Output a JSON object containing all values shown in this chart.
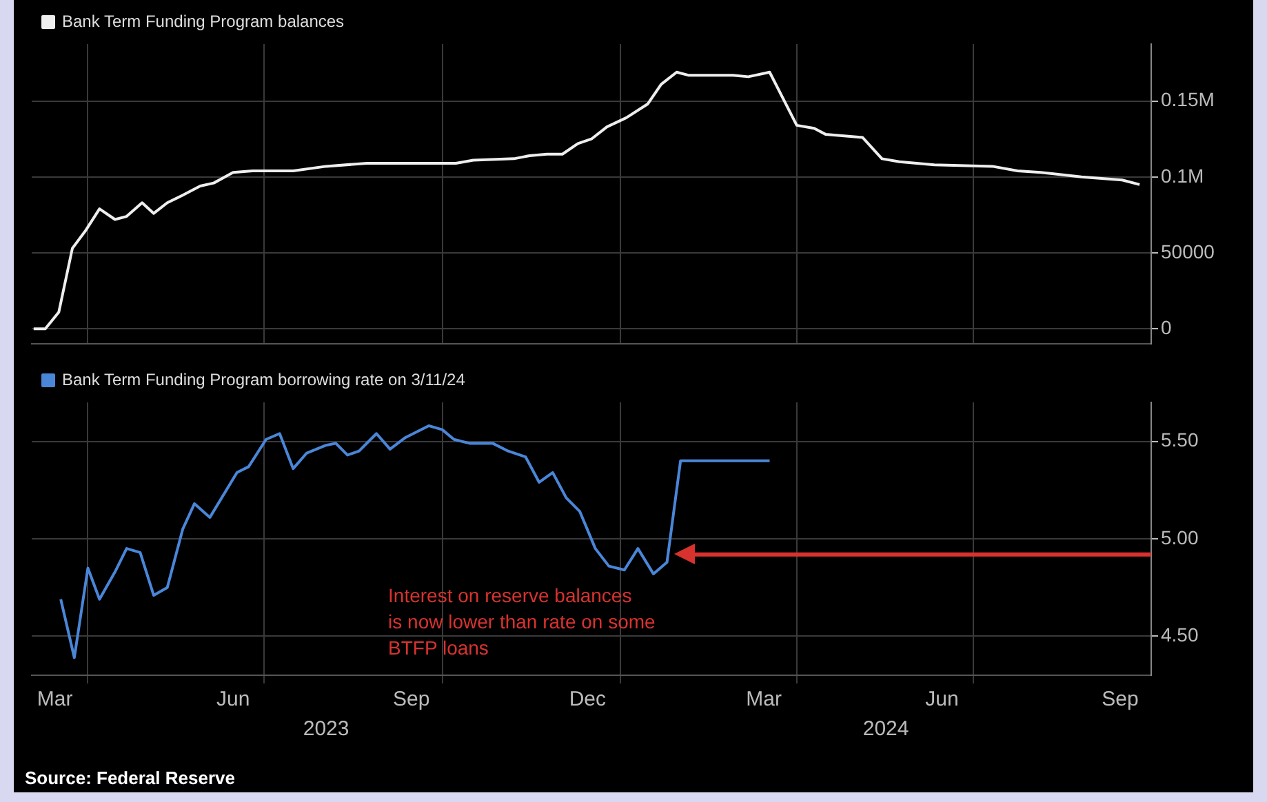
{
  "chart_data": [
    {
      "type": "line",
      "legend": "top left",
      "grid": true,
      "tick_labels": "y",
      "xlim": [
        "2023-03-03",
        "2024-10-01"
      ],
      "ylim": [
        -10000,
        187500
      ],
      "xticks": [
        {
          "value": "2023-04-01",
          "label": null
        },
        {
          "value": "2023-07-01",
          "label": null
        },
        {
          "value": "2023-10-01",
          "label": null
        },
        {
          "value": "2024-01-01",
          "label": null
        },
        {
          "value": "2024-04-01",
          "label": null
        },
        {
          "value": "2024-07-01",
          "label": null
        }
      ],
      "yticks": [
        0,
        50000,
        {
          "value": 100000,
          "label": "0.1M"
        },
        {
          "value": 150000,
          "label": "0.15M"
        }
      ],
      "series": [
        {
          "name": "Bank Term Funding Program balances",
          "color": "#eeeeee",
          "x": [
            "2023-03-04",
            "2023-03-10",
            "2023-03-17",
            "2023-03-24",
            "2023-03-31",
            "2023-04-07",
            "2023-04-15",
            "2023-04-21",
            "2023-04-29",
            "2023-05-05",
            "2023-05-12",
            "2023-05-20",
            "2023-05-29",
            "2023-06-05",
            "2023-06-15",
            "2023-06-25",
            "2023-07-16",
            "2023-08-02",
            "2023-08-23",
            "2023-09-17",
            "2023-10-08",
            "2023-10-17",
            "2023-11-07",
            "2023-11-15",
            "2023-11-24",
            "2023-12-02",
            "2023-12-10",
            "2023-12-17",
            "2023-12-25",
            "2024-01-04",
            "2024-01-15",
            "2024-01-22",
            "2024-01-30",
            "2024-02-05",
            "2024-02-28",
            "2024-03-07",
            "2024-03-18",
            "2024-04-01",
            "2024-04-10",
            "2024-04-16",
            "2024-05-05",
            "2024-05-15",
            "2024-05-24",
            "2024-06-11",
            "2024-07-11",
            "2024-07-24",
            "2024-08-05",
            "2024-08-26",
            "2024-09-16",
            "2024-09-25"
          ],
          "values": [
            0,
            0,
            11000,
            53000,
            65000,
            79000,
            72000,
            74000,
            83000,
            76000,
            83000,
            88000,
            94000,
            96000,
            103000,
            104000,
            104000,
            107000,
            109000,
            109000,
            109000,
            111000,
            112000,
            114000,
            115000,
            115000,
            122000,
            125000,
            133000,
            139000,
            148000,
            161000,
            169000,
            167000,
            167000,
            166000,
            169000,
            134000,
            132000,
            128000,
            126000,
            112000,
            110000,
            108000,
            107000,
            104000,
            103000,
            100000,
            98000,
            95000
          ]
        }
      ]
    },
    {
      "type": "line",
      "legend": "top left",
      "grid": true,
      "xlim": [
        "2023-03-03",
        "2024-10-01"
      ],
      "ylim": [
        4.3,
        5.7
      ],
      "xticks": [
        {
          "value": "2023-03-15",
          "label": "Mar"
        },
        {
          "value": "2023-04-01",
          "label": null
        },
        {
          "value": "2023-06-15",
          "label": "Jun"
        },
        {
          "value": "2023-07-01",
          "label": null
        },
        {
          "value": "2023-09-15",
          "label": "Sep"
        },
        {
          "value": "2023-10-01",
          "label": null
        },
        {
          "value": "2023-12-15",
          "label": "Dec"
        },
        {
          "value": "2024-01-01",
          "label": null
        },
        {
          "value": "2024-03-15",
          "label": "Mar"
        },
        {
          "value": "2024-04-01",
          "label": null
        },
        {
          "value": "2024-06-15",
          "label": "Jun"
        },
        {
          "value": "2024-07-01",
          "label": null
        },
        {
          "value": "2024-09-15",
          "label": "Sep"
        }
      ],
      "yticks": [
        {
          "value": 4.5,
          "label": "4.50"
        },
        {
          "value": 5,
          "label": "5.00"
        },
        {
          "value": 5.5,
          "label": "5.50"
        }
      ],
      "series": [
        {
          "name": "Bank Term Funding Program borrowing rate on 3/11/24",
          "color": "#4a86d8",
          "x": [
            "2023-03-18",
            "2023-03-25",
            "2023-04-01",
            "2023-04-07",
            "2023-04-15",
            "2023-04-21",
            "2023-04-28",
            "2023-05-05",
            "2023-05-12",
            "2023-05-20",
            "2023-05-26",
            "2023-06-03",
            "2023-06-17",
            "2023-06-23",
            "2023-07-02",
            "2023-07-09",
            "2023-07-16",
            "2023-07-23",
            "2023-08-02",
            "2023-08-07",
            "2023-08-13",
            "2023-08-19",
            "2023-08-28",
            "2023-09-04",
            "2023-09-12",
            "2023-09-24",
            "2023-10-01",
            "2023-10-07",
            "2023-10-15",
            "2023-10-27",
            "2023-11-04",
            "2023-11-13",
            "2023-11-20",
            "2023-11-27",
            "2023-12-04",
            "2023-12-11",
            "2023-12-19",
            "2023-12-26",
            "2024-01-03",
            "2024-01-10",
            "2024-01-18",
            "2024-01-25",
            "2024-02-01",
            "2024-03-18"
          ],
          "values": [
            4.69,
            4.39,
            4.85,
            4.69,
            4.83,
            4.95,
            4.93,
            4.71,
            4.75,
            5.05,
            5.18,
            5.11,
            5.34,
            5.37,
            5.51,
            5.54,
            5.36,
            5.44,
            5.48,
            5.49,
            5.43,
            5.45,
            5.54,
            5.46,
            5.52,
            5.58,
            5.56,
            5.51,
            5.49,
            5.49,
            5.45,
            5.42,
            5.29,
            5.34,
            5.21,
            5.14,
            4.95,
            4.86,
            4.84,
            4.95,
            4.82,
            4.88,
            5.4,
            5.4
          ]
        }
      ],
      "ref_lines": [
        {
          "axis": "y",
          "value": 4.92,
          "label": "Interest on reserve balances\nis now lower than rate on some\nBTFP loans",
          "color": "#d8322f"
        }
      ],
      "annotations": [
        "2023",
        "2024",
        "Source: Federal Reserve"
      ]
    }
  ]
}
